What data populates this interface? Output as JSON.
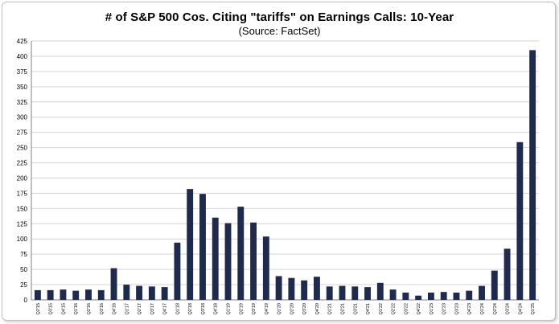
{
  "chart_data": {
    "type": "bar",
    "title": "# of S&P 500 Cos. Citing \"tariffs\" on Earnings Calls: 10-Year",
    "subtitle": "(Source: FactSet)",
    "xlabel": "",
    "ylabel": "",
    "ylim": [
      0,
      425
    ],
    "yticks": [
      0,
      25,
      50,
      75,
      100,
      125,
      150,
      175,
      200,
      225,
      250,
      275,
      300,
      325,
      350,
      375,
      400,
      425
    ],
    "grid": true,
    "bar_color": "#1f2a4f",
    "categories": [
      "Q2'15",
      "Q3'15",
      "Q4'15",
      "Q1'16",
      "Q2'16",
      "Q3'16",
      "Q4'16",
      "Q1'17",
      "Q2'17",
      "Q3'17",
      "Q4'17",
      "Q1'18",
      "Q2'18",
      "Q3'18",
      "Q4'18",
      "Q1'19",
      "Q2'19",
      "Q3'19",
      "Q4'19",
      "Q1'20",
      "Q2'20",
      "Q3'20",
      "Q4'20",
      "Q1'21",
      "Q2'21",
      "Q3'21",
      "Q4'21",
      "Q1'22",
      "Q2'22",
      "Q3'22",
      "Q4'22",
      "Q1'23",
      "Q2'23",
      "Q3'23",
      "Q4'23",
      "Q1'24",
      "Q2'24",
      "Q3'24",
      "Q4'24",
      "Q1'25"
    ],
    "values": [
      16,
      16,
      17,
      15,
      17,
      16,
      52,
      25,
      23,
      22,
      21,
      94,
      182,
      174,
      135,
      126,
      153,
      127,
      104,
      39,
      36,
      32,
      38,
      22,
      23,
      22,
      21,
      28,
      17,
      12,
      7,
      12,
      13,
      12,
      15,
      23,
      48,
      84,
      259,
      410
    ]
  }
}
